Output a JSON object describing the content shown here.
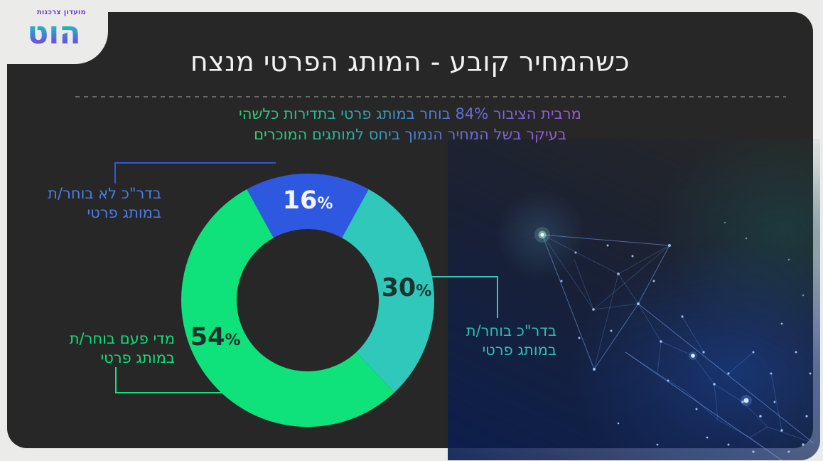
{
  "page": {
    "background": "#ebebea",
    "card_color": "#272727"
  },
  "logo": {
    "tagline": "מועדון צרכנות",
    "brand": "הוט",
    "tagline_color": "#6b46c8",
    "gradient_top": "#2ed3a6",
    "gradient_bottom": "#7e3ae0"
  },
  "header": {
    "title": "כשהמחיר קובע - המותג הפרטי מנצח"
  },
  "insight": {
    "line1": "מרבית הציבור 84% בוחר במותג פרטי בתדירות כלשהי",
    "line2": "בעיקר בשל המחיר הנמוך ביחס למותגים המוכרים",
    "gradient_right": "#9c5ad2",
    "gradient_mid": "#5b6fe0",
    "gradient_left": "#36d377"
  },
  "chart_data": {
    "type": "pie",
    "variant": "donut",
    "unit": "%",
    "total": 100,
    "start_angle_deg": -28.8,
    "outer_radius": 178,
    "inner_radius": 100,
    "label_radius": 140,
    "hole_color": "#272727",
    "legend_position": "callouts",
    "slices": [
      {
        "label": "בדר\"כ לא בוחר/ת במותג פרטי",
        "value": 16,
        "color": "#2F58E0",
        "value_label_color": "#F2F5FC",
        "label_angle": 0,
        "callout_line1": "בדר\"כ לא בוחר/ת",
        "callout_line2": "במותג פרטי",
        "callout_text_color": "#4A7DE8"
      },
      {
        "label": "בדר\"כ בוחר/ת במותג פרטי",
        "value": 30,
        "color": "#2FC8BB",
        "value_label_color": "#1B3430",
        "label_angle": 83,
        "callout_line1": "בדר\"כ בוחר/ת",
        "callout_line2": "במותג פרטי",
        "callout_text_color": "#2CC0B2"
      },
      {
        "label": "מדי פעם בוחר/ת במותג פרטי",
        "value": 54,
        "color": "#0FE27B",
        "value_label_color": "#1B2F2B",
        "label_angle": 248,
        "callout_line1": "מדי פעם בוחר/ת",
        "callout_line2": "במותג פרטי",
        "callout_text_color": "#10E07A"
      }
    ]
  }
}
